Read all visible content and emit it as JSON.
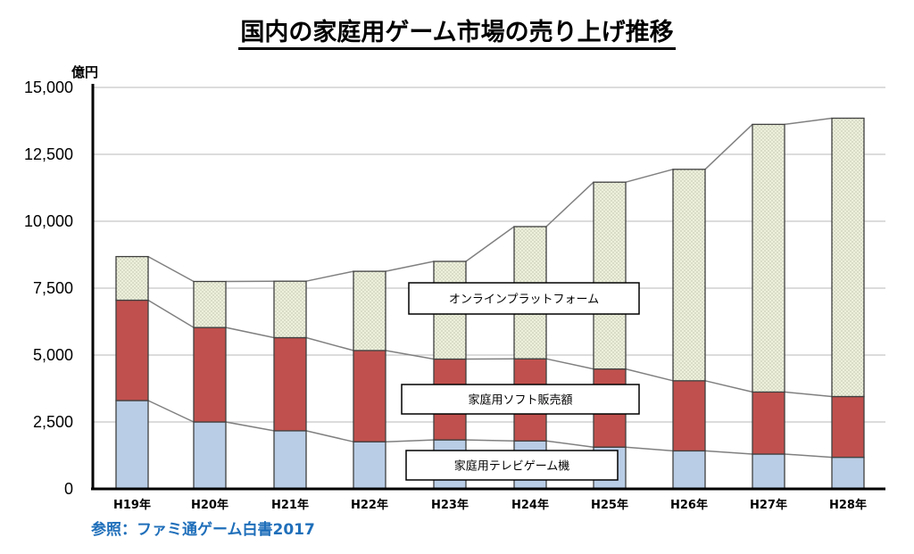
{
  "title": "国内の家庭用ゲーム市場の売り上げ推移",
  "source_note": "参照：ファミ通ゲーム白書2017",
  "chart_data": {
    "type": "bar",
    "stacked": true,
    "unit_label": "億円",
    "categories": [
      "H19年",
      "H20年",
      "H21年",
      "H22年",
      "H23年",
      "H24年",
      "H25年",
      "H26年",
      "H27年",
      "H28年"
    ],
    "yticks": [
      "0",
      "2,500",
      "5,000",
      "7,500",
      "10,000",
      "12,500",
      "15,000"
    ],
    "ylim": [
      0,
      15000
    ],
    "series": [
      {
        "name": "家庭用テレビゲーム機",
        "color": "#b9cde6",
        "values": [
          3300,
          2500,
          2170,
          1760,
          1830,
          1790,
          1560,
          1420,
          1300,
          1180
        ]
      },
      {
        "name": "家庭用ソフト販売額",
        "color": "#c0504d",
        "values": [
          3750,
          3530,
          3480,
          3410,
          3020,
          3070,
          2920,
          2620,
          2320,
          2270
        ]
      },
      {
        "name": "オンラインプラットフォーム",
        "color": "#edf1dc",
        "values": [
          1630,
          1720,
          2110,
          2960,
          3650,
          4940,
          6980,
          7900,
          10000,
          10400
        ]
      }
    ]
  }
}
